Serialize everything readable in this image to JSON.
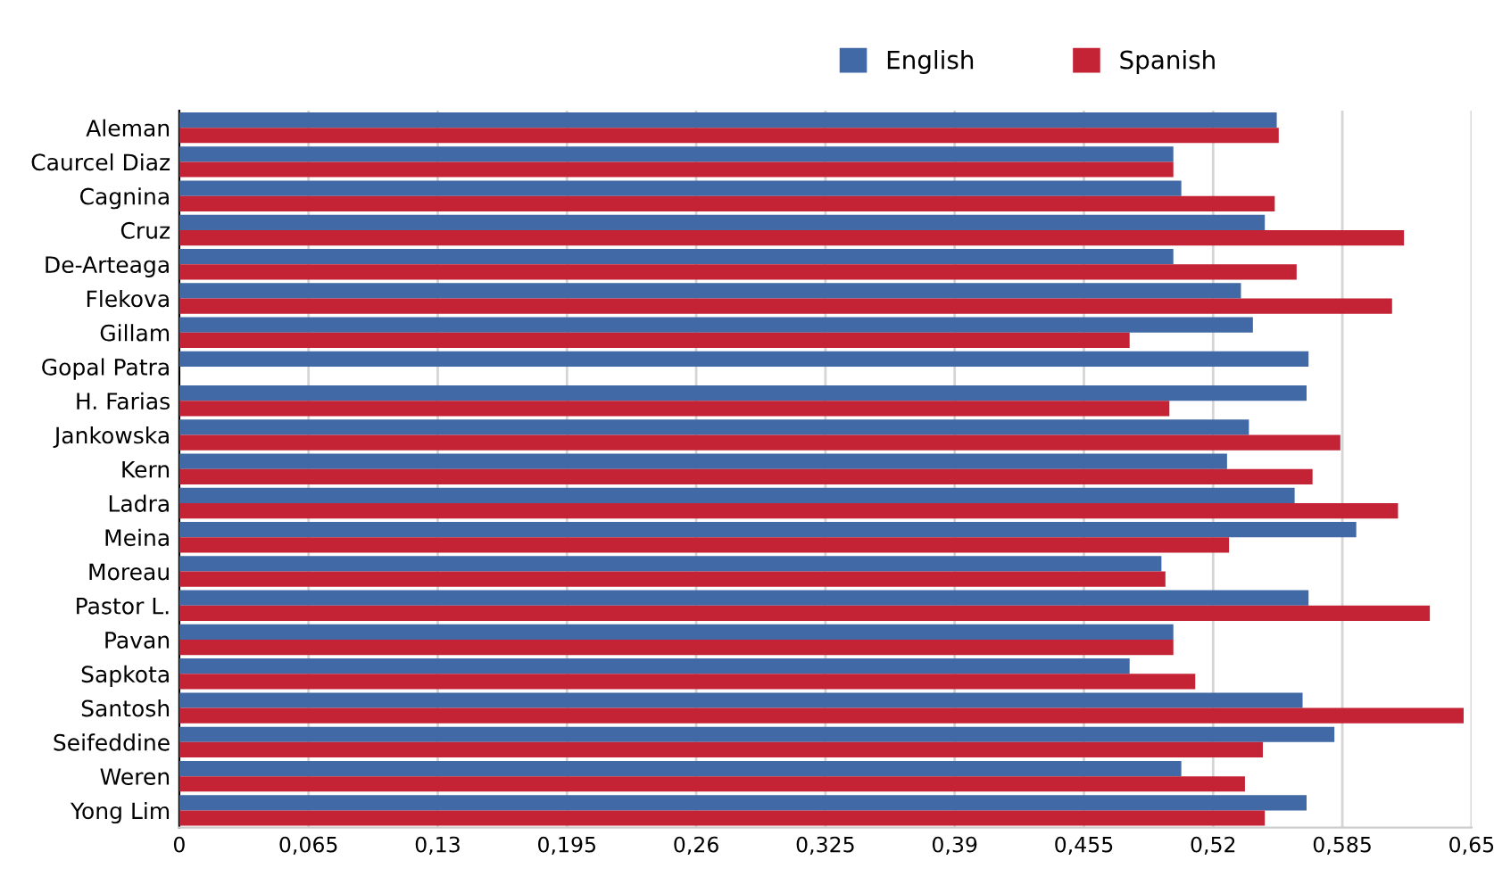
{
  "chart_data": {
    "type": "bar",
    "orientation": "horizontal",
    "categories": [
      "Aleman",
      "Caurcel Diaz",
      "Cagnina",
      "Cruz",
      "De-Arteaga",
      "Flekova",
      "Gillam",
      "Gopal Patra",
      "H. Farias",
      "Jankowska",
      "Kern",
      "Ladra",
      "Meina",
      "Moreau",
      "Pastor L.",
      "Pavan",
      "Sapkota",
      "Santosh",
      "Seifeddine",
      "Weren",
      "Yong Lim"
    ],
    "series": [
      {
        "name": "English",
        "color": "#4169a5",
        "values": [
          0.552,
          0.5,
          0.504,
          0.546,
          0.5,
          0.534,
          0.54,
          0.568,
          0.567,
          0.538,
          0.527,
          0.561,
          0.592,
          0.494,
          0.568,
          0.5,
          0.478,
          0.565,
          0.581,
          0.504,
          0.567
        ]
      },
      {
        "name": "Spanish",
        "color": "#c32334",
        "values": [
          0.553,
          0.5,
          0.551,
          0.616,
          0.562,
          0.61,
          0.478,
          null,
          0.498,
          0.584,
          0.57,
          0.613,
          0.528,
          0.496,
          0.629,
          0.5,
          0.511,
          0.646,
          0.545,
          0.536,
          0.546
        ]
      }
    ],
    "xlim": [
      0,
      0.65
    ],
    "xticks": [
      0,
      {
        "value": 0.065,
        "label": "0,065"
      },
      {
        "value": 0.13,
        "label": "0,13"
      },
      {
        "value": 0.195,
        "label": "0,195"
      },
      {
        "value": 0.26,
        "label": "0,26"
      },
      {
        "value": 0.325,
        "label": "0,325"
      },
      {
        "value": 0.39,
        "label": "0,39"
      },
      {
        "value": 0.455,
        "label": "0,455"
      },
      {
        "value": 0.52,
        "label": "0,52"
      },
      {
        "value": 0.585,
        "label": "0,585"
      },
      {
        "value": 0.65,
        "label": "0,65"
      }
    ],
    "grid": "x",
    "legend": "top right"
  }
}
